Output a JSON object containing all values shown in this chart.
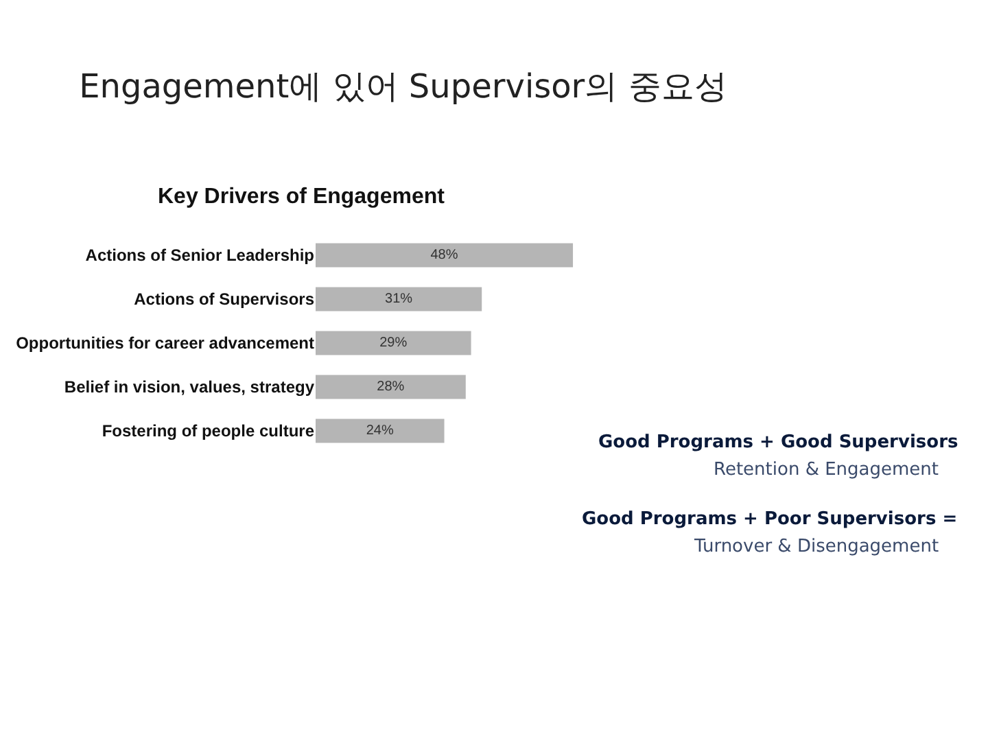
{
  "chart_data": {
    "type": "bar",
    "orientation": "horizontal",
    "title": "Engagement에 있어 Supervisor의 중요성",
    "subtitle": "Key Drivers of Engagement",
    "categories": [
      "Actions of Senior Leadership",
      "Actions of Supervisors",
      "Opportunities for career advancement",
      "Belief in vision, values, strategy",
      "Fostering of people culture"
    ],
    "values": [
      48,
      31,
      29,
      28,
      24
    ],
    "value_labels": [
      "48%",
      "31%",
      "29%",
      "28%",
      "24%"
    ],
    "color": "#b5b5b5",
    "tick_labels": "y",
    "grid": false,
    "legend": false,
    "annotations": [
      "Good Programs + Good Supervisors",
      "Retention & Engagement",
      "Good Programs + Poor Supervisors =",
      "Turnover & Disengagement"
    ]
  }
}
